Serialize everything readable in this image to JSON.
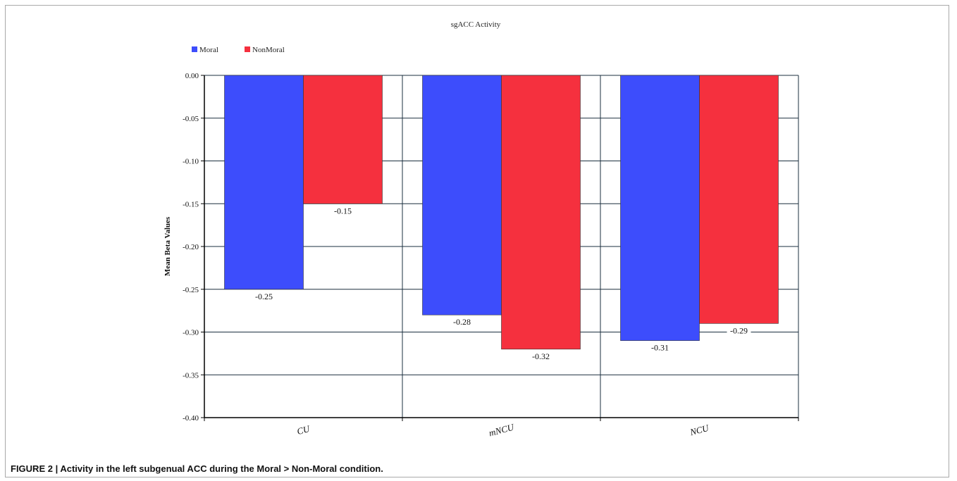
{
  "caption": "FIGURE 2 | Activity in the left subgenual ACC during the Moral > Non-Moral condition.",
  "colors": {
    "moral": "#3d4dfc",
    "nonmoral": "#f5303e",
    "grid": "#1b2f3f",
    "axis": "#000000"
  },
  "chart_data": {
    "type": "bar",
    "title": "sgACC Activity",
    "xlabel": "",
    "ylabel": "Mean Beta Values",
    "categories": [
      "CU",
      "mNCU",
      "NCU"
    ],
    "series": [
      {
        "name": "Moral",
        "values": [
          -0.25,
          -0.28,
          -0.31
        ],
        "color": "#3d4dfc"
      },
      {
        "name": "NonMoral",
        "values": [
          -0.15,
          -0.32,
          -0.29
        ],
        "color": "#f5303e"
      }
    ],
    "ylim": [
      -0.4,
      0.0
    ],
    "yticks": [
      "0.00",
      "-0.05",
      "-0.10",
      "-0.15",
      "-0.20",
      "-0.25",
      "-0.30",
      "-0.35",
      "-0.40"
    ],
    "data_labels": [
      [
        "-0.25",
        "-0.28",
        "-0.31"
      ],
      [
        "-0.15",
        "-0.32",
        "-0.29"
      ]
    ],
    "grid": true,
    "legend_position": "top-left"
  }
}
